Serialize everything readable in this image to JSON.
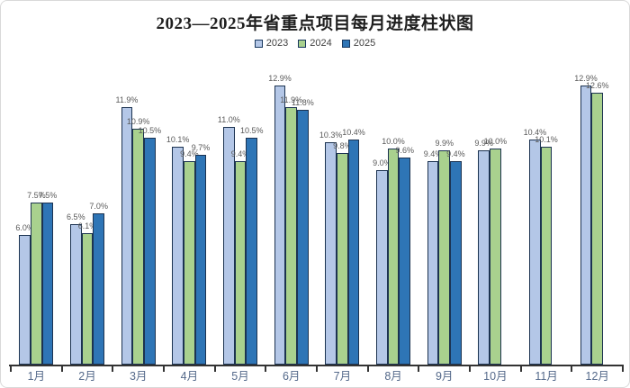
{
  "chart_data": {
    "type": "bar",
    "title": "2023—2025年省重点项目每月进度柱状图",
    "categories": [
      "1月",
      "2月",
      "3月",
      "4月",
      "5月",
      "6月",
      "7月",
      "8月",
      "9月",
      "10月",
      "11月",
      "12月"
    ],
    "series": [
      {
        "name": "2023",
        "color": "#b4c7e7",
        "values": [
          6.0,
          6.5,
          11.9,
          10.1,
          11.0,
          12.9,
          10.3,
          9.0,
          9.4,
          9.9,
          10.4,
          12.9
        ]
      },
      {
        "name": "2024",
        "color": "#a9d18e",
        "values": [
          7.5,
          6.1,
          10.9,
          9.4,
          9.4,
          11.9,
          9.8,
          10.0,
          9.9,
          10.0,
          10.1,
          12.6
        ]
      },
      {
        "name": "2025",
        "color": "#2e75b6",
        "values": [
          7.5,
          7.0,
          10.5,
          9.7,
          10.5,
          11.8,
          10.4,
          9.6,
          9.4,
          null,
          null,
          null
        ]
      }
    ],
    "value_suffix": "%",
    "data_labels": true,
    "ylim": [
      0,
      13.5
    ],
    "grid": false,
    "legend_position": "top",
    "xlabel": "",
    "ylabel": ""
  },
  "colors": {
    "bar_border": "#1c3351",
    "axis": "#333333",
    "data_label_text": "#595959",
    "axis_label_text": "#54698a",
    "title_text": "#1f1f1f",
    "legend_text": "#404040",
    "legend_marker_border": "#17375e",
    "card_border": "#d9d9d9",
    "background": "#ffffff"
  }
}
